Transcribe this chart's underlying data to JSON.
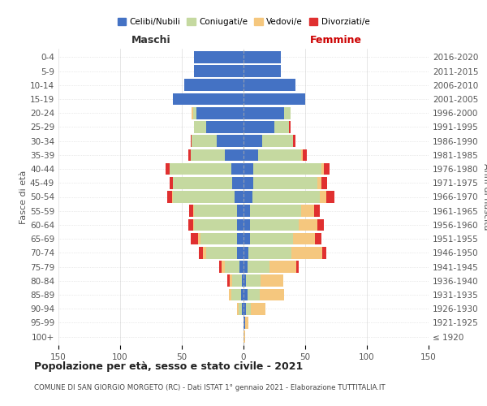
{
  "age_groups": [
    "100+",
    "95-99",
    "90-94",
    "85-89",
    "80-84",
    "75-79",
    "70-74",
    "65-69",
    "60-64",
    "55-59",
    "50-54",
    "45-49",
    "40-44",
    "35-39",
    "30-34",
    "25-29",
    "20-24",
    "15-19",
    "10-14",
    "5-9",
    "0-4"
  ],
  "birth_years": [
    "≤ 1920",
    "1921-1925",
    "1926-1930",
    "1931-1935",
    "1936-1940",
    "1941-1945",
    "1946-1950",
    "1951-1955",
    "1956-1960",
    "1961-1965",
    "1966-1970",
    "1971-1975",
    "1976-1980",
    "1981-1985",
    "1986-1990",
    "1991-1995",
    "1996-2000",
    "2001-2005",
    "2006-2010",
    "2011-2015",
    "2016-2020"
  ],
  "male_celibe": [
    0,
    0,
    1,
    2,
    1,
    3,
    5,
    5,
    5,
    5,
    7,
    9,
    10,
    15,
    22,
    30,
    38,
    57,
    48,
    40,
    40
  ],
  "male_coniugato": [
    0,
    0,
    3,
    8,
    8,
    12,
    25,
    30,
    35,
    35,
    50,
    48,
    50,
    28,
    20,
    10,
    3,
    0,
    0,
    0,
    0
  ],
  "male_vedovo": [
    0,
    0,
    1,
    2,
    2,
    3,
    3,
    2,
    1,
    1,
    1,
    0,
    0,
    0,
    0,
    0,
    1,
    0,
    0,
    0,
    0
  ],
  "male_divorziato": [
    0,
    0,
    0,
    0,
    2,
    2,
    3,
    6,
    4,
    3,
    4,
    3,
    3,
    2,
    1,
    0,
    0,
    0,
    0,
    0,
    0
  ],
  "female_celibe": [
    0,
    1,
    2,
    3,
    2,
    3,
    4,
    5,
    5,
    5,
    7,
    8,
    8,
    12,
    15,
    25,
    33,
    50,
    42,
    30,
    30
  ],
  "female_coniugato": [
    0,
    0,
    4,
    10,
    12,
    18,
    35,
    35,
    40,
    42,
    55,
    52,
    55,
    35,
    25,
    12,
    5,
    0,
    0,
    0,
    0
  ],
  "female_vedovo": [
    1,
    3,
    12,
    20,
    18,
    22,
    25,
    18,
    15,
    10,
    5,
    3,
    2,
    1,
    0,
    0,
    0,
    0,
    0,
    0,
    0
  ],
  "female_divorziato": [
    0,
    0,
    0,
    0,
    0,
    2,
    3,
    5,
    5,
    5,
    7,
    5,
    5,
    3,
    2,
    1,
    0,
    0,
    0,
    0,
    0
  ],
  "colors": {
    "celibe": "#4472C4",
    "coniugato": "#c5d9a0",
    "vedovo": "#f5c77e",
    "divorziato": "#e03030"
  },
  "title": "Popolazione per età, sesso e stato civile - 2021",
  "subtitle": "COMUNE DI SAN GIORGIO MORGETO (RC) - Dati ISTAT 1° gennaio 2021 - Elaborazione TUTTITALIA.IT",
  "xlabel_left": "Maschi",
  "xlabel_right": "Femmine",
  "ylabel_left": "Fasce di età",
  "ylabel_right": "Anni di nascita",
  "xlim": 150,
  "legend_labels": [
    "Celibi/Nubili",
    "Coniugati/e",
    "Vedovi/e",
    "Divorziati/e"
  ],
  "background_color": "#ffffff",
  "grid_color": "#cccccc"
}
